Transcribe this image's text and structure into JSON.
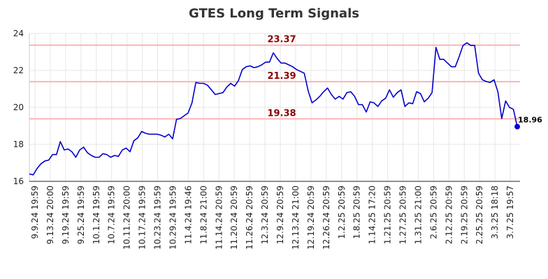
{
  "chart_data": {
    "type": "line",
    "title": "GTES Long Term Signals",
    "xlabel": "",
    "ylabel": "",
    "ylim": [
      16,
      24
    ],
    "yticks": [
      16,
      18,
      20,
      22,
      24
    ],
    "grid": true,
    "line_color": "#0000cc",
    "ref_color": "#ffb3b3",
    "ref_label_color": "#8b0000",
    "reference_lines": [
      {
        "value": 23.37,
        "label": "23.37"
      },
      {
        "value": 21.39,
        "label": "21.39"
      },
      {
        "value": 19.38,
        "label": "19.38"
      }
    ],
    "last_point": {
      "value": 18.96,
      "label": "18.96"
    },
    "x_tick_labels": [
      "9.9.24 19:59",
      "9.13.24 20:00",
      "9.19.24 19:59",
      "9.25.24 19:59",
      "10.1.24 19:59",
      "10.7.24 19:59",
      "10.11.24 20:00",
      "10.17.24 19:59",
      "10.23.24 19:59",
      "10.29.24 19:59",
      "11.4.24 19:46",
      "11.8.24 21:00",
      "11.14.24 20:59",
      "11.20.24 20:59",
      "11.26.24 20:59",
      "12.3.24 20:59",
      "12.9.24 20:59",
      "12.13.24 21:00",
      "12.19.24 20:59",
      "12.26.24 20:59",
      "1.2.25 20:59",
      "1.8.25 20:59",
      "1.14.25 17:20",
      "1.21.25 20:59",
      "1.27.25 20:59",
      "1.31.25 21:00",
      "2.6.25 20:59",
      "2.12.25 20:59",
      "2.19.25 20:59",
      "2.25.25 20:59",
      "3.3.25 18:18",
      "3.7.25 19:57"
    ],
    "series": [
      {
        "values": [
          16.4,
          16.35,
          16.7,
          16.95,
          17.1,
          17.15,
          17.45,
          17.45,
          18.15,
          17.7,
          17.75,
          17.6,
          17.3,
          17.7,
          17.85,
          17.55,
          17.4,
          17.3,
          17.3,
          17.5,
          17.45,
          17.3,
          17.4,
          17.35,
          17.7,
          17.8,
          17.6,
          18.2,
          18.35,
          18.7,
          18.6,
          18.55,
          18.55,
          18.55,
          18.5,
          18.4,
          18.55,
          18.3,
          19.35,
          19.4,
          19.55,
          19.7,
          20.25,
          21.35,
          21.3,
          21.3,
          21.2,
          20.95,
          20.7,
          20.75,
          20.8,
          21.1,
          21.3,
          21.15,
          21.45,
          22.05,
          22.2,
          22.25,
          22.15,
          22.2,
          22.3,
          22.45,
          22.45,
          22.95,
          22.65,
          22.4,
          22.4,
          22.3,
          22.2,
          22.05,
          21.95,
          21.85,
          20.9,
          20.25,
          20.4,
          20.6,
          20.85,
          21.05,
          20.7,
          20.45,
          20.6,
          20.45,
          20.8,
          20.85,
          20.6,
          20.15,
          20.15,
          19.75,
          20.3,
          20.25,
          20.05,
          20.35,
          20.5,
          20.95,
          20.55,
          20.8,
          20.95,
          20.05,
          20.25,
          20.2,
          20.85,
          20.75,
          20.3,
          20.5,
          20.8,
          23.25,
          22.6,
          22.6,
          22.4,
          22.2,
          22.2,
          22.75,
          23.35,
          23.5,
          23.35,
          23.35,
          21.85,
          21.5,
          21.4,
          21.35,
          21.5,
          20.85,
          19.4,
          20.35,
          20.0,
          19.9,
          18.96
        ]
      }
    ]
  }
}
